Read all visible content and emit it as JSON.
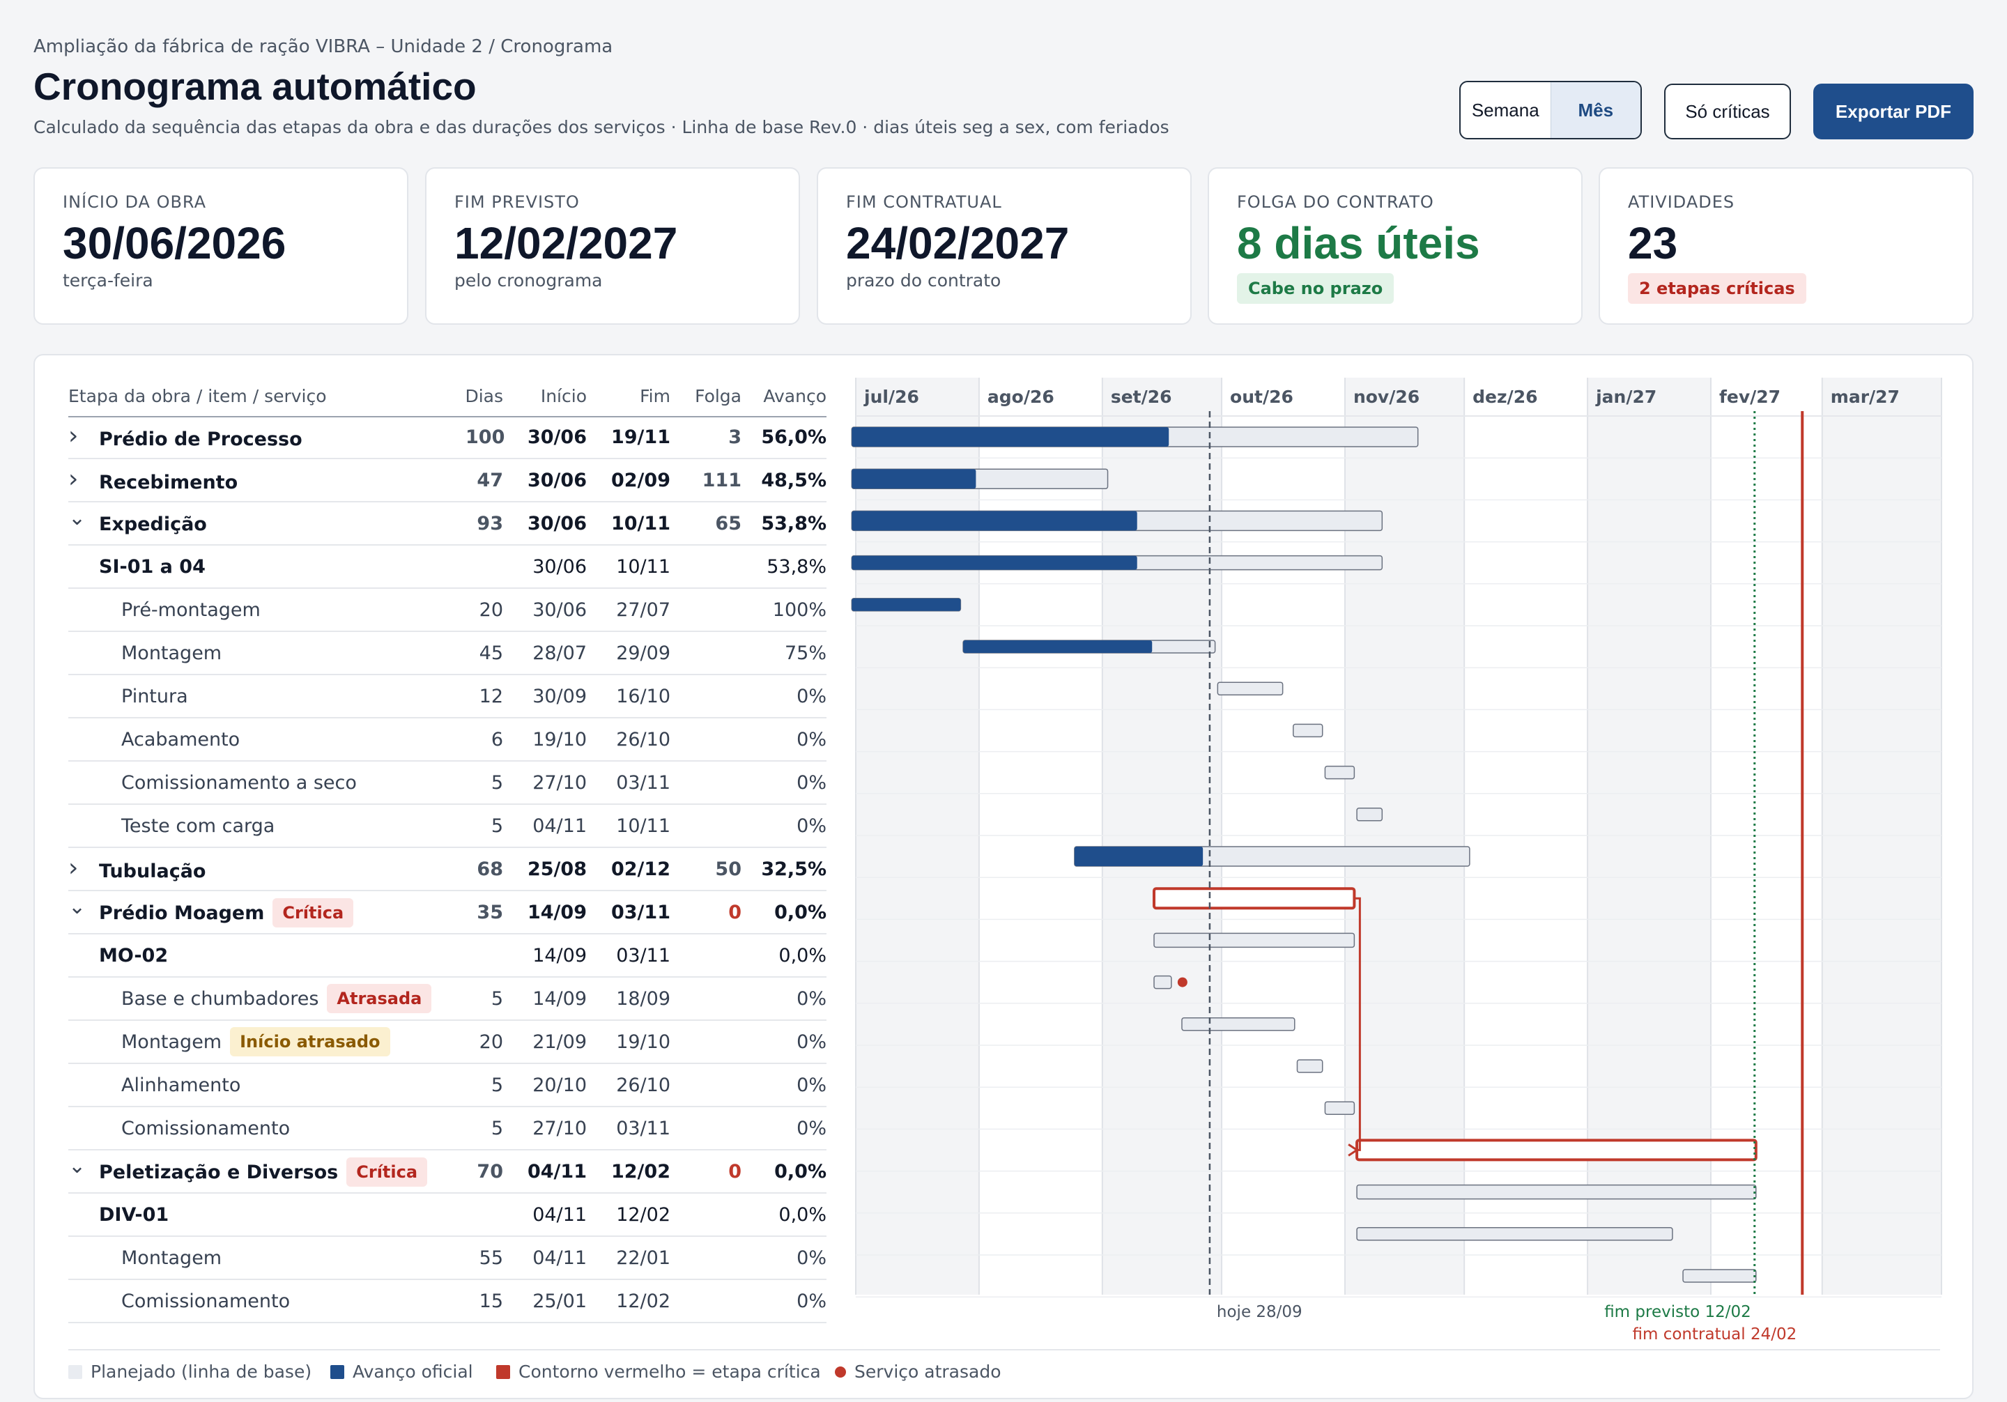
{
  "header": {
    "breadcrumb": "Ampliação da fábrica de ração VIBRA – Unidade 2 / Cronograma",
    "title": "Cronograma automático",
    "subtitle": "Calculado da sequência das etapas da obra e das durações dos serviços · Linha de base Rev.0 · dias úteis seg a sex, com feriados"
  },
  "toolbar": {
    "view_week": "Semana",
    "view_month": "Mês",
    "active_view": "Mês",
    "critical_only": "Só críticas",
    "export": "Exportar PDF"
  },
  "cards": [
    {
      "label": "INÍCIO DA OBRA",
      "value": "30/06/2026",
      "note": "terça-feira"
    },
    {
      "label": "FIM PREVISTO",
      "value": "12/02/2027",
      "note": "pelo cronograma"
    },
    {
      "label": "FIM CONTRATUAL",
      "value": "24/02/2027",
      "note": "prazo do contrato"
    },
    {
      "label": "FOLGA DO CONTRATO",
      "value": "8 dias úteis",
      "badge": "Cabe no prazo"
    },
    {
      "label": "ATIVIDADES",
      "value": "23",
      "badge": "2 etapas críticas"
    }
  ],
  "table": {
    "headers": {
      "name": "Etapa da obra / item / serviço",
      "dias": "Dias",
      "inicio": "Início",
      "fim": "Fim",
      "folga": "Folga",
      "avanco": "Avanço"
    },
    "rows": [
      {
        "level": 0,
        "expanded": false,
        "name": "Prédio de Processo",
        "dias": "100",
        "inicio": "30/06",
        "fim": "19/11",
        "folga": "3",
        "avanco": "56,0%"
      },
      {
        "level": 0,
        "expanded": false,
        "name": "Recebimento",
        "dias": "47",
        "inicio": "30/06",
        "fim": "02/09",
        "folga": "111",
        "avanco": "48,5%"
      },
      {
        "level": 0,
        "expanded": true,
        "name": "Expedição",
        "dias": "93",
        "inicio": "30/06",
        "fim": "10/11",
        "folga": "65",
        "avanco": "53,8%"
      },
      {
        "level": 1,
        "name": "SI-01 a 04",
        "dias": "",
        "inicio": "30/06",
        "fim": "10/11",
        "folga": "",
        "avanco": "53,8%"
      },
      {
        "level": 2,
        "name": "Pré-montagem",
        "dias": "20",
        "inicio": "30/06",
        "fim": "27/07",
        "folga": "",
        "avanco": "100%"
      },
      {
        "level": 2,
        "name": "Montagem",
        "dias": "45",
        "inicio": "28/07",
        "fim": "29/09",
        "folga": "",
        "avanco": "75%"
      },
      {
        "level": 2,
        "name": "Pintura",
        "dias": "12",
        "inicio": "30/09",
        "fim": "16/10",
        "folga": "",
        "avanco": "0%"
      },
      {
        "level": 2,
        "name": "Acabamento",
        "dias": "6",
        "inicio": "19/10",
        "fim": "26/10",
        "folga": "",
        "avanco": "0%"
      },
      {
        "level": 2,
        "name": "Comissionamento a seco",
        "dias": "5",
        "inicio": "27/10",
        "fim": "03/11",
        "folga": "",
        "avanco": "0%"
      },
      {
        "level": 2,
        "name": "Teste com carga",
        "dias": "5",
        "inicio": "04/11",
        "fim": "10/11",
        "folga": "",
        "avanco": "0%"
      },
      {
        "level": 0,
        "expanded": false,
        "name": "Tubulação",
        "dias": "68",
        "inicio": "25/08",
        "fim": "02/12",
        "folga": "50",
        "avanco": "32,5%"
      },
      {
        "level": 0,
        "expanded": true,
        "name": "Prédio Moagem",
        "tag": "Crítica",
        "tag_type": "red",
        "dias": "35",
        "inicio": "14/09",
        "fim": "03/11",
        "folga": "0",
        "avanco": "0,0%"
      },
      {
        "level": 1,
        "name": "MO-02",
        "dias": "",
        "inicio": "14/09",
        "fim": "03/11",
        "folga": "",
        "avanco": "0,0%"
      },
      {
        "level": 2,
        "name": "Base e chumbadores",
        "tag": "Atrasada",
        "tag_type": "red",
        "dias": "5",
        "inicio": "14/09",
        "fim": "18/09",
        "folga": "",
        "avanco": "0%"
      },
      {
        "level": 2,
        "name": "Montagem",
        "tag": "Início atrasado",
        "tag_type": "amber",
        "dias": "20",
        "inicio": "21/09",
        "fim": "19/10",
        "folga": "",
        "avanco": "0%"
      },
      {
        "level": 2,
        "name": "Alinhamento",
        "dias": "5",
        "inicio": "20/10",
        "fim": "26/10",
        "folga": "",
        "avanco": "0%"
      },
      {
        "level": 2,
        "name": "Comissionamento",
        "dias": "5",
        "inicio": "27/10",
        "fim": "03/11",
        "folga": "",
        "avanco": "0%"
      },
      {
        "level": 0,
        "expanded": true,
        "name": "Peletização e Diversos",
        "tag": "Crítica",
        "tag_type": "red",
        "dias": "70",
        "inicio": "04/11",
        "fim": "12/02",
        "folga": "0",
        "avanco": "0,0%"
      },
      {
        "level": 1,
        "name": "DIV-01",
        "dias": "",
        "inicio": "04/11",
        "fim": "12/02",
        "folga": "",
        "avanco": "0,0%"
      },
      {
        "level": 2,
        "name": "Montagem",
        "dias": "55",
        "inicio": "04/11",
        "fim": "22/01",
        "folga": "",
        "avanco": "0%"
      },
      {
        "level": 2,
        "name": "Comissionamento",
        "dias": "15",
        "inicio": "25/01",
        "fim": "12/02",
        "folga": "",
        "avanco": "0%"
      }
    ]
  },
  "gantt": {
    "months": [
      "jul/26",
      "ago/26",
      "set/26",
      "out/26",
      "nov/26",
      "dez/26",
      "jan/27",
      "fev/27",
      "mar/27"
    ],
    "today_label": "hoje 28/09",
    "planned_end_label": "fim previsto 12/02",
    "contract_end_label": "fim contratual 24/02",
    "today_date": "2026-09-28",
    "planned_end_date": "2027-02-12",
    "contract_end_date": "2027-02-24",
    "bars": [
      {
        "start": "2026-06-30",
        "end": "2026-11-19",
        "progress": 0.56,
        "critical": false
      },
      {
        "start": "2026-06-30",
        "end": "2026-09-02",
        "progress": 0.485,
        "critical": false
      },
      {
        "start": "2026-06-30",
        "end": "2026-11-10",
        "progress": 0.538,
        "critical": false
      },
      {
        "start": "2026-06-30",
        "end": "2026-11-10",
        "progress": 0.538,
        "critical": false
      },
      {
        "start": "2026-06-30",
        "end": "2026-07-27",
        "progress": 1.0,
        "critical": false
      },
      {
        "start": "2026-07-28",
        "end": "2026-09-29",
        "progress": 0.75,
        "critical": false
      },
      {
        "start": "2026-09-30",
        "end": "2026-10-16",
        "progress": 0,
        "critical": false
      },
      {
        "start": "2026-10-19",
        "end": "2026-10-26",
        "progress": 0,
        "critical": false
      },
      {
        "start": "2026-10-27",
        "end": "2026-11-03",
        "progress": 0,
        "critical": false
      },
      {
        "start": "2026-11-04",
        "end": "2026-11-10",
        "progress": 0,
        "critical": false
      },
      {
        "start": "2026-08-25",
        "end": "2026-12-02",
        "progress": 0.325,
        "critical": false
      },
      {
        "start": "2026-09-14",
        "end": "2026-11-03",
        "progress": 0,
        "critical": true
      },
      {
        "start": "2026-09-14",
        "end": "2026-11-03",
        "progress": 0,
        "critical": false
      },
      {
        "start": "2026-09-14",
        "end": "2026-09-18",
        "progress": 0,
        "critical": false,
        "late": true
      },
      {
        "start": "2026-09-21",
        "end": "2026-10-19",
        "progress": 0,
        "critical": false
      },
      {
        "start": "2026-10-20",
        "end": "2026-10-26",
        "progress": 0,
        "critical": false
      },
      {
        "start": "2026-10-27",
        "end": "2026-11-03",
        "progress": 0,
        "critical": false
      },
      {
        "start": "2026-11-04",
        "end": "2027-02-12",
        "progress": 0,
        "critical": true
      },
      {
        "start": "2026-11-04",
        "end": "2027-02-12",
        "progress": 0,
        "critical": false
      },
      {
        "start": "2026-11-04",
        "end": "2027-01-22",
        "progress": 0,
        "critical": false
      },
      {
        "start": "2027-01-25",
        "end": "2027-02-12",
        "progress": 0,
        "critical": false
      }
    ]
  },
  "legend": {
    "planned": "Planejado (linha de base)",
    "progress": "Avanço oficial",
    "critical": "Contorno vermelho = etapa crítica",
    "late": "Serviço atrasado"
  },
  "colors": {
    "primary": "#1f4e8c",
    "planned_fill": "#e9ecf1",
    "critical": "#c0392b",
    "ok_green": "#1d7a46"
  }
}
